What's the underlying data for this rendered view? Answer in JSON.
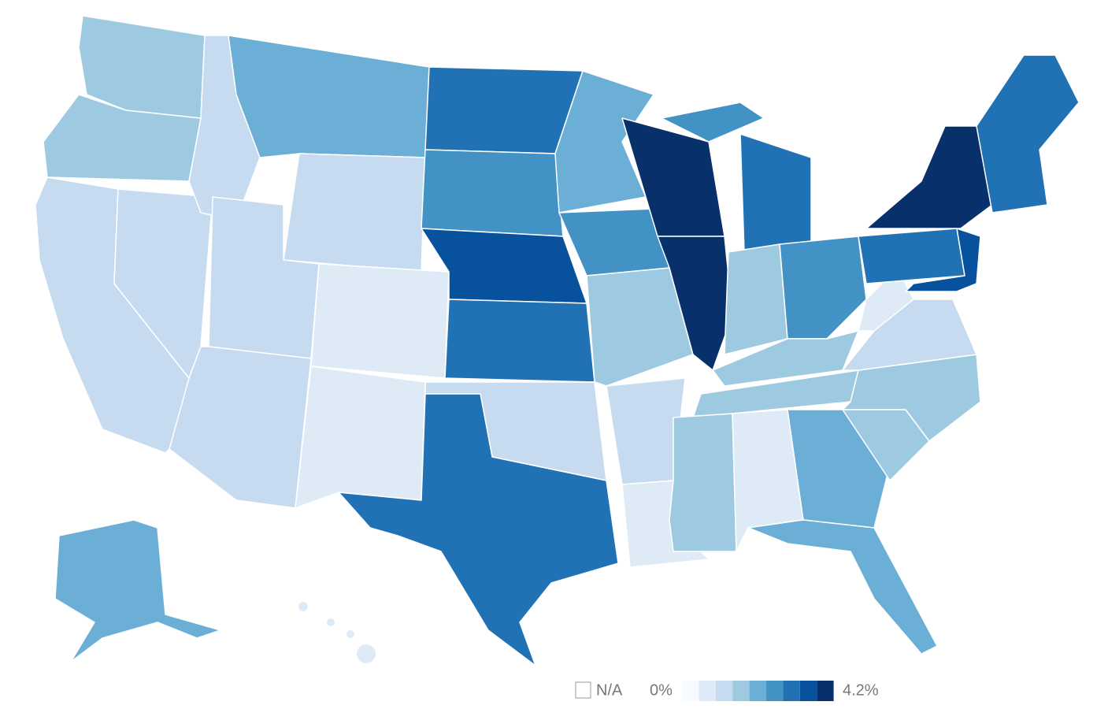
{
  "legend": {
    "na_label": "N/A",
    "min_label": "0%",
    "max_label": "4.2%",
    "colors": [
      "#f7fbff",
      "#deebf7",
      "#c6dbef",
      "#9ecae1",
      "#6baed6",
      "#4292c6",
      "#2171b5",
      "#08519c",
      "#08306b"
    ]
  }
}
